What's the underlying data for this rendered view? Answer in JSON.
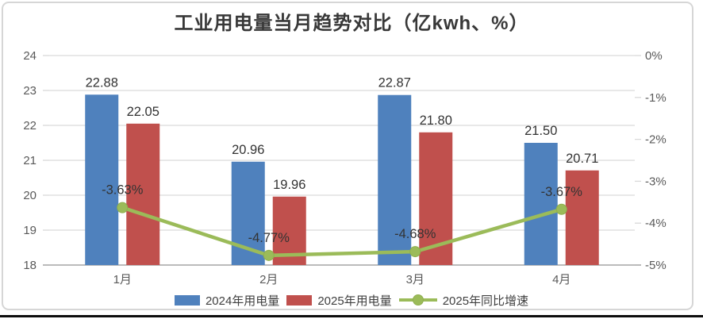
{
  "title": "工业用电量当月趋势对比（亿kwh、%）",
  "chart_data": {
    "type": "combo-bar-line",
    "categories": [
      "1月",
      "2月",
      "3月",
      "4月"
    ],
    "series": [
      {
        "name": "2024年用电量",
        "type": "bar",
        "axis": "left",
        "color": "#4F81BD",
        "values": [
          22.88,
          20.96,
          22.87,
          21.5
        ],
        "labels": [
          "22.88",
          "20.96",
          "22.87",
          "21.50"
        ]
      },
      {
        "name": "2025年用电量",
        "type": "bar",
        "axis": "left",
        "color": "#C0504D",
        "values": [
          22.05,
          19.96,
          21.8,
          20.71
        ],
        "labels": [
          "22.05",
          "19.96",
          "21.80",
          "20.71"
        ]
      },
      {
        "name": "2025年同比增速",
        "type": "line",
        "axis": "right",
        "color": "#9BBB59",
        "marker_stroke": "#8FAF4E",
        "values": [
          -3.63,
          -4.77,
          -4.68,
          -3.67
        ],
        "labels": [
          "-3.63%",
          "-4.77%",
          "-4.68%",
          "-3.67%"
        ]
      }
    ],
    "left_axis": {
      "min": 18,
      "max": 24,
      "step": 1,
      "tick_labels": [
        "18",
        "19",
        "20",
        "21",
        "22",
        "23",
        "24"
      ]
    },
    "right_axis": {
      "min": -5,
      "max": 0,
      "step": 1,
      "tick_labels": [
        "0%",
        "-1%",
        "-2%",
        "-3%",
        "-4%",
        "-5%"
      ]
    },
    "grid": true,
    "legend_position": "bottom",
    "styles": {
      "gridline": "#d9d9d9",
      "axis_line": "#a6a6a6",
      "tick_text": "#595959",
      "label_text": "#333333",
      "title_text": "#383838",
      "card_border": "#d6d6d6",
      "bottom_edge": "#0d0d0d"
    }
  }
}
